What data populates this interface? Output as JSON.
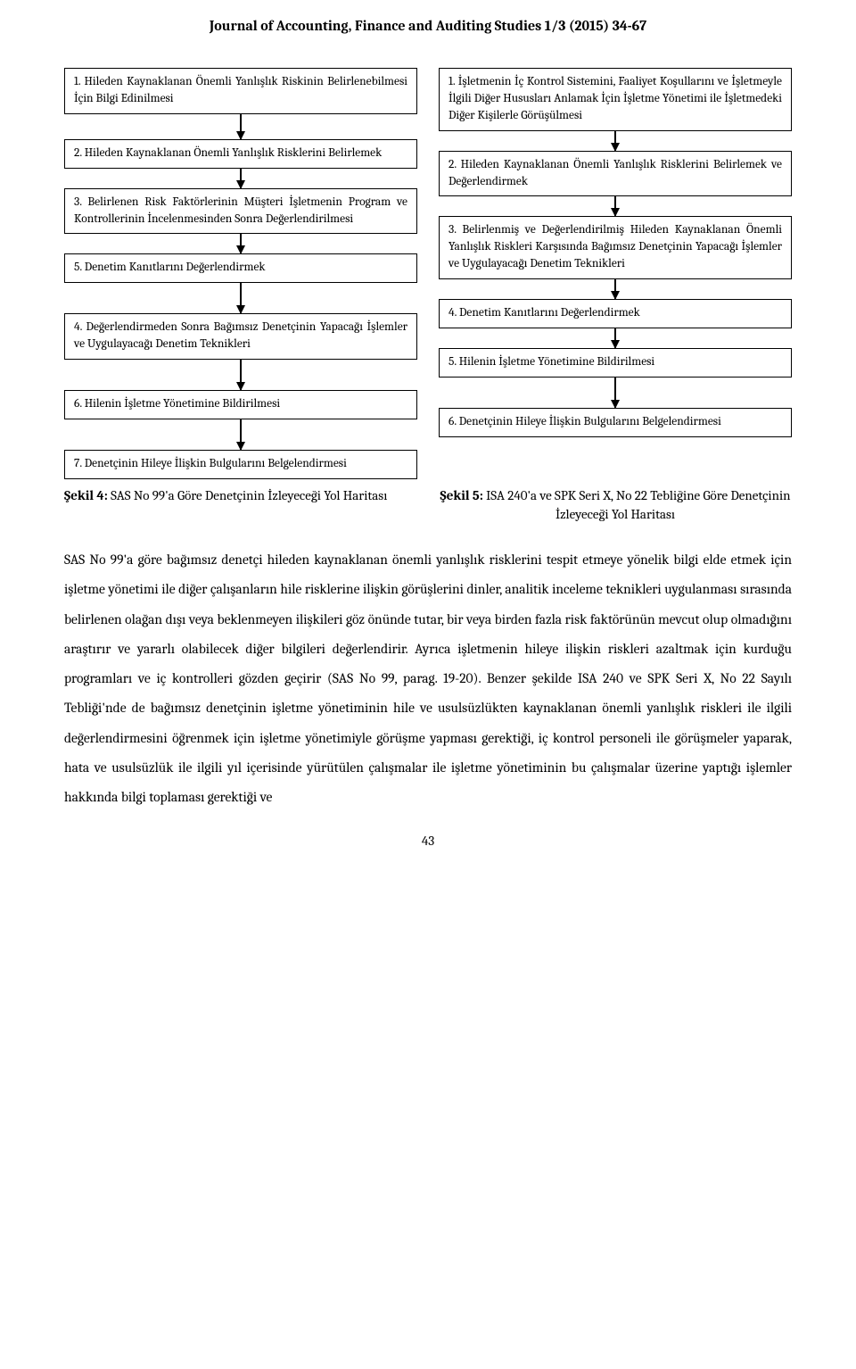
{
  "header": "Journal of Accounting, Finance and Auditing Studies 1/3 (2015) 34-67",
  "left": {
    "b1": "1. Hileden Kaynaklanan Önemli Yanlışlık Riskinin Belirlenebilmesi İçin Bilgi Edinilmesi",
    "b2": "2. Hileden Kaynaklanan Önemli Yanlışlık Risklerini Belirlemek",
    "b3": "3. Belirlenen Risk Faktörlerinin Müşteri İşletmenin Program ve Kontrollerinin İncelenmesinden Sonra Değerlendirilmesi",
    "b4": "5. Denetim Kanıtlarını Değerlendirmek",
    "b5": "4. Değerlendirmeden Sonra Bağımsız Denetçinin Yapacağı İşlemler ve Uygulayacağı Denetim Teknikleri",
    "b6": "6. Hilenin İşletme Yönetimine Bildirilmesi",
    "b7": "7. Denetçinin Hileye İlişkin Bulgularını Belgelendirmesi"
  },
  "right": {
    "b1": "1. İşletmenin İç Kontrol Sistemini, Faaliyet Koşullarını ve İşletmeyle İlgili Diğer Hususları Anlamak İçin İşletme Yönetimi ile İşletmedeki Diğer Kişilerle Görüşülmesi",
    "b2": "2. Hileden Kaynaklanan Önemli Yanlışlık Risklerini Belirlemek ve Değerlendirmek",
    "b3": "3. Belirlenmiş ve Değerlendirilmiş Hileden Kaynaklanan Önemli Yanlışlık Riskleri Karşısında Bağımsız Denetçinin Yapacağı İşlemler ve Uygulayacağı Denetim Teknikleri",
    "b4": "4. Denetim Kanıtlarını Değerlendirmek",
    "b5": "5. Hilenin İşletme Yönetimine Bildirilmesi",
    "b6": "6. Denetçinin Hileye İlişkin Bulgularını Belgelendirmesi"
  },
  "fig4_bold": "Şekil 4:",
  "fig4_rest": " SAS No 99'a Göre Denetçinin İzleyeceği Yol Haritası",
  "fig5_bold": "Şekil 5:",
  "fig5_rest": " ISA 240'a ve SPK Seri X, No 22 Tebliğine Göre Denetçinin İzleyeceği Yol Haritası",
  "body": "SAS No 99'a göre bağımsız denetçi hileden kaynaklanan önemli yanlışlık risklerini tespit etmeye yönelik bilgi elde etmek için işletme yönetimi ile diğer çalışanların hile risklerine ilişkin görüşlerini dinler, analitik inceleme teknikleri uygulanması sırasında belirlenen olağan dışı veya beklenmeyen ilişkileri göz önünde tutar, bir veya birden fazla risk faktörünün mevcut olup olmadığını araştırır ve yararlı olabilecek diğer bilgileri değerlendirir. Ayrıca işletmenin hileye ilişkin riskleri azaltmak için kurduğu programları ve iç kontrolleri gözden geçirir (SAS No 99, parag. 19-20). Benzer şekilde ISA 240 ve SPK Seri X, No 22 Sayılı  Tebliği'nde de bağımsız denetçinin işletme yönetiminin hile ve usulsüzlükten kaynaklanan önemli yanlışlık riskleri ile ilgili değerlendirmesini öğrenmek için işletme yönetimiyle görüşme yapması gerektiği, iç kontrol personeli ile görüşmeler yaparak, hata ve usulsüzlük ile ilgili yıl içerisinde yürütülen çalışmalar ile işletme yönetiminin bu çalışmalar üzerine yaptığı işlemler hakkında bilgi toplaması gerektiği ve",
  "page": "43"
}
